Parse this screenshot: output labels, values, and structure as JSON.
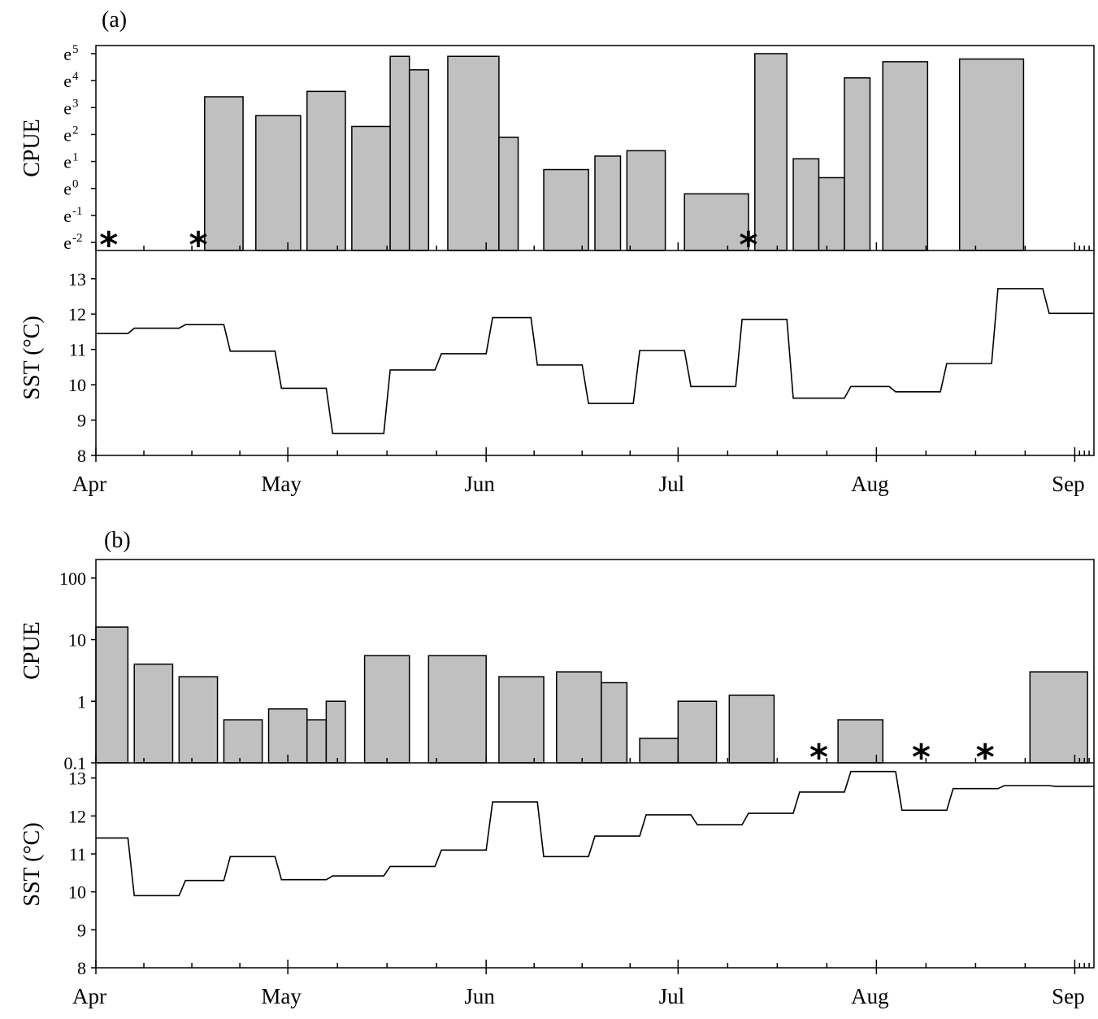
{
  "chart_data": [
    {
      "panel": "a",
      "panel_label": "(a)",
      "type": "bar",
      "ylabel": "CPUE",
      "yscale": "log-e",
      "ylim": [
        -2.3,
        5.3
      ],
      "yticks": [
        {
          "value": -2,
          "base": "e",
          "exp": "-2"
        },
        {
          "value": -1,
          "base": "e",
          "exp": "-1"
        },
        {
          "value": 0,
          "base": "e",
          "exp": "0"
        },
        {
          "value": 1,
          "base": "e",
          "exp": "1"
        },
        {
          "value": 2,
          "base": "e",
          "exp": "2"
        },
        {
          "value": 3,
          "base": "e",
          "exp": "3"
        },
        {
          "value": 4,
          "base": "e",
          "exp": "4"
        },
        {
          "value": 5,
          "base": "e",
          "exp": "5"
        }
      ],
      "x_axis": {
        "type": "date",
        "range": [
          "2000-04-01",
          "2000-09-04"
        ]
      },
      "bars": [
        {
          "start": "2000-04-18",
          "end": "2000-04-23",
          "value": 3.4
        },
        {
          "start": "2000-04-26",
          "end": "2000-05-02",
          "value": 2.7
        },
        {
          "start": "2000-05-04",
          "end": "2000-05-09",
          "value": 3.6
        },
        {
          "start": "2000-05-11",
          "end": "2000-05-16",
          "value": 2.3
        },
        {
          "start": "2000-05-17",
          "end": "2000-05-19",
          "value": 4.9
        },
        {
          "start": "2000-05-20",
          "end": "2000-05-22",
          "value": 4.4
        },
        {
          "start": "2000-05-26",
          "end": "2000-06-02",
          "value": 4.9
        },
        {
          "start": "2000-06-03",
          "end": "2000-06-05",
          "value": 1.9
        },
        {
          "start": "2000-06-10",
          "end": "2000-06-16",
          "value": 0.7
        },
        {
          "start": "2000-06-18",
          "end": "2000-06-21",
          "value": 1.2
        },
        {
          "start": "2000-06-23",
          "end": "2000-06-28",
          "value": 1.4
        },
        {
          "start": "2000-07-02",
          "end": "2000-07-11",
          "value": -0.2
        },
        {
          "start": "2000-07-13",
          "end": "2000-07-17",
          "value": 5.0
        },
        {
          "start": "2000-07-19",
          "end": "2000-07-22",
          "value": 1.1
        },
        {
          "start": "2000-07-23",
          "end": "2000-07-26",
          "value": 0.4
        },
        {
          "start": "2000-07-27",
          "end": "2000-07-30",
          "value": 4.1
        },
        {
          "start": "2000-08-02",
          "end": "2000-08-08",
          "value": 4.7
        },
        {
          "start": "2000-08-14",
          "end": "2000-08-23",
          "value": 4.8
        }
      ],
      "zero_catch_markers": [
        {
          "date": "2000-04-03",
          "label": "*"
        },
        {
          "date": "2000-04-17",
          "label": "*"
        },
        {
          "date": "2000-07-12",
          "label": "*"
        }
      ],
      "sst": {
        "ylabel": "SST (°C)",
        "ylim": [
          8,
          13.8
        ],
        "yticks": [
          "8",
          "9",
          "10",
          "11",
          "12",
          "13"
        ],
        "steps": [
          {
            "start": "2000-04-01",
            "end": "2000-04-06",
            "value": 11.45
          },
          {
            "start": "2000-04-07",
            "end": "2000-04-14",
            "value": 11.6
          },
          {
            "start": "2000-04-15",
            "end": "2000-04-21",
            "value": 11.7
          },
          {
            "start": "2000-04-22",
            "end": "2000-04-29",
            "value": 10.95
          },
          {
            "start": "2000-04-30",
            "end": "2000-05-07",
            "value": 9.9
          },
          {
            "start": "2000-05-08",
            "end": "2000-05-16",
            "value": 8.62
          },
          {
            "start": "2000-05-17",
            "end": "2000-05-24",
            "value": 10.42
          },
          {
            "start": "2000-05-25",
            "end": "2000-06-01",
            "value": 10.88
          },
          {
            "start": "2000-06-02",
            "end": "2000-06-08",
            "value": 11.9
          },
          {
            "start": "2000-06-09",
            "end": "2000-06-16",
            "value": 10.56
          },
          {
            "start": "2000-06-17",
            "end": "2000-06-24",
            "value": 9.47
          },
          {
            "start": "2000-06-25",
            "end": "2000-07-02",
            "value": 10.97
          },
          {
            "start": "2000-07-03",
            "end": "2000-07-10",
            "value": 9.95
          },
          {
            "start": "2000-07-11",
            "end": "2000-07-18",
            "value": 11.85
          },
          {
            "start": "2000-07-19",
            "end": "2000-07-27",
            "value": 9.62
          },
          {
            "start": "2000-07-28",
            "end": "2000-08-03",
            "value": 9.95
          },
          {
            "start": "2000-08-04",
            "end": "2000-08-11",
            "value": 9.8
          },
          {
            "start": "2000-08-12",
            "end": "2000-08-19",
            "value": 10.6
          },
          {
            "start": "2000-08-20",
            "end": "2000-08-27",
            "value": 12.72
          },
          {
            "start": "2000-08-28",
            "end": "2000-09-04",
            "value": 12.02
          }
        ]
      }
    },
    {
      "panel": "b",
      "panel_label": "(b)",
      "type": "bar",
      "ylabel": "CPUE",
      "yscale": "log10",
      "ylim": [
        0.1,
        200
      ],
      "yticks": [
        "0.1",
        "1",
        "10",
        "100"
      ],
      "x_axis": {
        "type": "date",
        "range": [
          "2000-04-01",
          "2000-09-04"
        ]
      },
      "bars": [
        {
          "start": "2000-04-01",
          "end": "2000-04-05",
          "value": 16
        },
        {
          "start": "2000-04-07",
          "end": "2000-04-12",
          "value": 4
        },
        {
          "start": "2000-04-14",
          "end": "2000-04-19",
          "value": 2.5
        },
        {
          "start": "2000-04-21",
          "end": "2000-04-26",
          "value": 0.5
        },
        {
          "start": "2000-04-28",
          "end": "2000-05-03",
          "value": 0.75
        },
        {
          "start": "2000-05-04",
          "end": "2000-05-06",
          "value": 0.5
        },
        {
          "start": "2000-05-07",
          "end": "2000-05-09",
          "value": 1.0
        },
        {
          "start": "2000-05-13",
          "end": "2000-05-19",
          "value": 5.5
        },
        {
          "start": "2000-05-23",
          "end": "2000-05-31",
          "value": 5.5
        },
        {
          "start": "2000-06-03",
          "end": "2000-06-09",
          "value": 2.5
        },
        {
          "start": "2000-06-12",
          "end": "2000-06-18",
          "value": 3.0
        },
        {
          "start": "2000-06-19",
          "end": "2000-06-22",
          "value": 2.0
        },
        {
          "start": "2000-06-25",
          "end": "2000-06-30",
          "value": 0.25
        },
        {
          "start": "2000-07-01",
          "end": "2000-07-06",
          "value": 1.0
        },
        {
          "start": "2000-07-09",
          "end": "2000-07-15",
          "value": 1.25
        },
        {
          "start": "2000-07-26",
          "end": "2000-08-01",
          "value": 0.5
        },
        {
          "start": "2000-08-25",
          "end": "2000-09-02",
          "value": 3.0
        }
      ],
      "zero_catch_markers": [
        {
          "date": "2000-07-23",
          "label": "*"
        },
        {
          "date": "2000-08-08",
          "label": "*"
        },
        {
          "date": "2000-08-18",
          "label": "*"
        }
      ],
      "sst": {
        "ylabel": "SST (°C)",
        "ylim": [
          8,
          13.4
        ],
        "yticks": [
          "8",
          "9",
          "10",
          "11",
          "12",
          "13"
        ],
        "steps": [
          {
            "start": "2000-04-01",
            "end": "2000-04-06",
            "value": 11.42
          },
          {
            "start": "2000-04-07",
            "end": "2000-04-14",
            "value": 9.9
          },
          {
            "start": "2000-04-15",
            "end": "2000-04-21",
            "value": 10.3
          },
          {
            "start": "2000-04-22",
            "end": "2000-04-29",
            "value": 10.93
          },
          {
            "start": "2000-04-30",
            "end": "2000-05-07",
            "value": 10.32
          },
          {
            "start": "2000-05-08",
            "end": "2000-05-16",
            "value": 10.42
          },
          {
            "start": "2000-05-17",
            "end": "2000-05-24",
            "value": 10.67
          },
          {
            "start": "2000-05-25",
            "end": "2000-06-01",
            "value": 11.1
          },
          {
            "start": "2000-06-02",
            "end": "2000-06-09",
            "value": 12.37
          },
          {
            "start": "2000-06-10",
            "end": "2000-06-17",
            "value": 10.93
          },
          {
            "start": "2000-06-18",
            "end": "2000-06-25",
            "value": 11.47
          },
          {
            "start": "2000-06-26",
            "end": "2000-07-03",
            "value": 12.03
          },
          {
            "start": "2000-07-04",
            "end": "2000-07-11",
            "value": 11.77
          },
          {
            "start": "2000-07-12",
            "end": "2000-07-19",
            "value": 12.07
          },
          {
            "start": "2000-07-20",
            "end": "2000-07-27",
            "value": 12.63
          },
          {
            "start": "2000-07-28",
            "end": "2000-08-04",
            "value": 13.17
          },
          {
            "start": "2000-08-05",
            "end": "2000-08-12",
            "value": 12.15
          },
          {
            "start": "2000-08-13",
            "end": "2000-08-20",
            "value": 12.72
          },
          {
            "start": "2000-08-21",
            "end": "2000-08-28",
            "value": 12.8
          },
          {
            "start": "2000-08-29",
            "end": "2000-09-04",
            "value": 12.78
          }
        ]
      }
    }
  ],
  "months": [
    {
      "label": "Apr",
      "date": "2000-04-01"
    },
    {
      "label": "May",
      "date": "2000-05-01"
    },
    {
      "label": "Jun",
      "date": "2000-06-01"
    },
    {
      "label": "Jul",
      "date": "2000-07-01"
    },
    {
      "label": "Aug",
      "date": "2000-08-01"
    },
    {
      "label": "Sep",
      "date": "2000-09-01"
    }
  ],
  "colors": {
    "bar_fill": "#c0c0c0",
    "line": "#000000"
  }
}
